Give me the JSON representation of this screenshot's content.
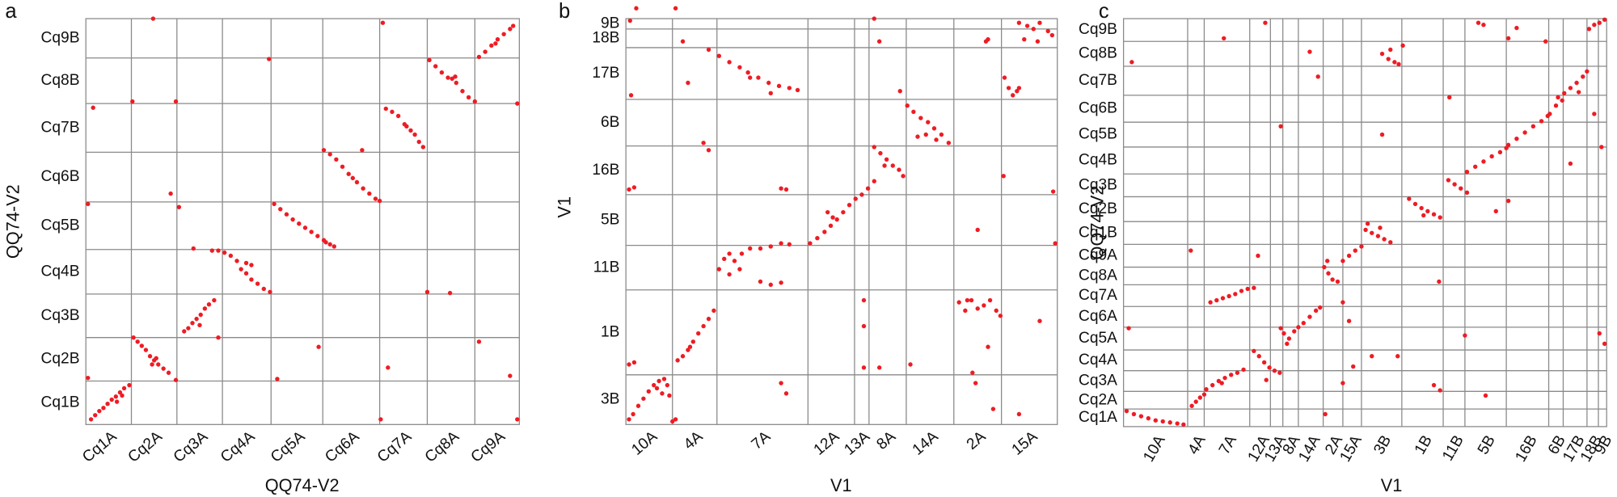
{
  "chart_data": [
    {
      "type": "scatter",
      "panel": "a",
      "xlabel": "QQ74-V2",
      "ylabel": "QQ74-V2",
      "color": "#ee1c24",
      "x_categories": [
        "Cq1A",
        "Cq2A",
        "Cq3A",
        "Cq4A",
        "Cq5A",
        "Cq6A",
        "Cq7A",
        "Cq8A",
        "Cq9A"
      ],
      "y_categories": [
        "Cq1B",
        "Cq2B",
        "Cq3B",
        "Cq4B",
        "Cq5B",
        "Cq6B",
        "Cq7B",
        "Cq8B",
        "Cq9B"
      ],
      "xlim": [
        0,
        419
      ],
      "ylim": [
        0,
        392
      ],
      "xbreaks": [
        44,
        88,
        132,
        179,
        229,
        284,
        330,
        376
      ],
      "ybreaks": [
        42,
        84,
        126,
        169,
        215,
        263,
        310,
        354
      ],
      "x": [
        5,
        9,
        13,
        17,
        21,
        25,
        29,
        33,
        37,
        42,
        30,
        35,
        46,
        50,
        54,
        58,
        62,
        66,
        70,
        75,
        80,
        64,
        68,
        95,
        99,
        103,
        107,
        111,
        115,
        119,
        124,
        128,
        110,
        122,
        128,
        134,
        140,
        146,
        150,
        155,
        160,
        166,
        172,
        178,
        155,
        160,
        182,
        188,
        194,
        200,
        206,
        212,
        218,
        224,
        230,
        236,
        240,
        232,
        230,
        236,
        242,
        248,
        254,
        258,
        262,
        268,
        274,
        280,
        284,
        290,
        296,
        302,
        308,
        314,
        318,
        322,
        326,
        310,
        332,
        338,
        344,
        350,
        354,
        358,
        364,
        370,
        376,
        357,
        380,
        386,
        392,
        398,
        404,
        410,
        413,
        396,
        2,
        7,
        65,
        177,
        287,
        330,
        417,
        87,
        45,
        82,
        104,
        2,
        87,
        185,
        285,
        417,
        225,
        292,
        380,
        410,
        352,
        267,
        90
      ],
      "y": [
        5,
        9,
        13,
        16,
        20,
        24,
        27,
        31,
        35,
        38,
        22,
        28,
        84,
        80,
        76,
        72,
        66,
        62,
        58,
        54,
        50,
        58,
        64,
        90,
        93,
        98,
        102,
        106,
        112,
        116,
        120,
        84,
        96,
        168,
        168,
        166,
        163,
        158,
        150,
        146,
        140,
        136,
        131,
        128,
        156,
        154,
        213,
        208,
        203,
        198,
        194,
        190,
        186,
        182,
        178,
        174,
        172,
        176,
        265,
        261,
        256,
        249,
        242,
        238,
        234,
        228,
        223,
        218,
        216,
        305,
        302,
        298,
        290,
        284,
        280,
        273,
        268,
        288,
        352,
        346,
        340,
        335,
        334,
        330,
        322,
        316,
        312,
        336,
        355,
        360,
        366,
        372,
        377,
        382,
        385,
        368,
        213,
        306,
        392,
        353,
        388,
        128,
        310,
        312,
        312,
        223,
        170,
        45,
        43,
        44,
        5,
        5,
        75,
        55,
        80,
        47,
        127,
        265,
        210
      ]
    },
    {
      "type": "scatter",
      "panel": "b",
      "xlabel": "V1",
      "ylabel": "V1",
      "color": "#ee1c24",
      "x_categories": [
        "10A",
        "4A",
        "7A",
        "12A",
        "13A",
        "8A",
        "14A",
        "2A",
        "15A"
      ],
      "y_categories": [
        "3B",
        "1B",
        "11B",
        "5B",
        "16B",
        "6B",
        "17B",
        "18B",
        "9B"
      ],
      "xlim": [
        0,
        417
      ],
      "ylim": [
        0,
        392
      ],
      "xbreaks": [
        45,
        88,
        176,
        221,
        235,
        271,
        317,
        363
      ],
      "ybreaks": [
        48,
        130,
        173,
        222,
        269,
        314,
        364,
        382
      ],
      "x": [
        3,
        7,
        12,
        17,
        22,
        27,
        32,
        37,
        40,
        35,
        30,
        42,
        3,
        8,
        3,
        8,
        5,
        4,
        45,
        48,
        50,
        55,
        60,
        65,
        70,
        75,
        80,
        85,
        62,
        90,
        95,
        100,
        105,
        112,
        120,
        130,
        140,
        150,
        158,
        100,
        110,
        130,
        140,
        150,
        80,
        90,
        100,
        110,
        118,
        128,
        138,
        148,
        158,
        166,
        140,
        120,
        178,
        185,
        192,
        198,
        204,
        210,
        216,
        222,
        228,
        234,
        195,
        200,
        240,
        246,
        252,
        258,
        264,
        268,
        250,
        240,
        272,
        278,
        285,
        292,
        298,
        305,
        312,
        300,
        290,
        282,
        366,
        370,
        374,
        378,
        380,
        380,
        388,
        394,
        400,
        408,
        412,
        385,
        398,
        322,
        328,
        334,
        340,
        346,
        352,
        358,
        362,
        330,
        150,
        155,
        230,
        230,
        245,
        275,
        230,
        365,
        415,
        400,
        413,
        335,
        338,
        355,
        380,
        350,
        348,
        350,
        240,
        55,
        48,
        10,
        150,
        155,
        265,
        340,
        60,
        245,
        75,
        80
      ],
      "y": [
        5,
        10,
        18,
        25,
        32,
        38,
        42,
        44,
        38,
        30,
        35,
        28,
        58,
        60,
        227,
        229,
        318,
        390,
        3,
        5,
        62,
        66,
        72,
        80,
        88,
        95,
        102,
        110,
        75,
        150,
        160,
        165,
        158,
        165,
        170,
        170,
        172,
        175,
        174,
        145,
        150,
        138,
        135,
        137,
        362,
        356,
        350,
        345,
        340,
        335,
        330,
        327,
        325,
        323,
        320,
        335,
        175,
        180,
        186,
        192,
        198,
        205,
        212,
        218,
        222,
        228,
        205,
        200,
        268,
        262,
        256,
        250,
        246,
        240,
        250,
        235,
        308,
        302,
        296,
        292,
        286,
        280,
        272,
        275,
        280,
        278,
        335,
        325,
        318,
        322,
        325,
        388,
        385,
        382,
        388,
        380,
        376,
        372,
        370,
        118,
        110,
        120,
        112,
        115,
        120,
        110,
        105,
        120,
        228,
        227,
        95,
        120,
        55,
        58,
        55,
        240,
        175,
        100,
        225,
        50,
        40,
        15,
        10,
        75,
        370,
        372,
        392,
        370,
        402,
        402,
        40,
        30,
        322,
        188,
        330,
        370,
        272,
        265
      ]
    },
    {
      "type": "scatter",
      "panel": "c",
      "xlabel": "V1",
      "ylabel": "QQ74-V2",
      "color": "#ee1c24",
      "x_categories": [
        "10A",
        "4A",
        "7A",
        "12A",
        "13A",
        "8A",
        "14A",
        "2A",
        "15A",
        "3B",
        "1B",
        "11B",
        "5B",
        "16B",
        "6B",
        "17B",
        "18B",
        "9B"
      ],
      "y_categories": [
        "Cq1A",
        "Cq2A",
        "Cq3A",
        "Cq4A",
        "Cq5A",
        "Cq6A",
        "Cq7A",
        "Cq8A",
        "Cq9A",
        "Cq1B",
        "Cq2B",
        "Cq3B",
        "Cq4B",
        "Cq5B",
        "Cq6B",
        "Cq7B",
        "Cq8B",
        "Cq9B"
      ],
      "xlim": [
        0,
        467
      ],
      "ylim": [
        0,
        394
      ],
      "xbreaks": [
        62,
        78,
        122,
        142,
        154,
        169,
        193,
        212,
        230,
        269,
        309,
        330,
        370,
        411,
        425,
        448,
        459
      ],
      "ybreaks": [
        17,
        34,
        54,
        74,
        96,
        116,
        137,
        154,
        176,
        198,
        222,
        244,
        270,
        294,
        320,
        348,
        372
      ],
      "x": [
        3,
        10,
        17,
        24,
        31,
        38,
        45,
        52,
        58,
        66,
        70,
        74,
        78,
        80,
        86,
        92,
        98,
        104,
        110,
        116,
        95,
        84,
        90,
        96,
        102,
        108,
        114,
        120,
        126,
        126,
        131,
        136,
        141,
        146,
        151,
        155,
        160,
        165,
        158,
        169,
        174,
        180,
        186,
        190,
        194,
        198,
        202,
        207,
        212,
        218,
        224,
        230,
        234,
        240,
        246,
        252,
        258,
        236,
        248,
        276,
        282,
        288,
        294,
        300,
        306,
        290,
        314,
        320,
        326,
        332,
        332,
        340,
        348,
        356,
        364,
        370,
        372,
        380,
        388,
        396,
        404,
        410,
        412,
        418,
        424,
        420,
        426,
        432,
        438,
        444,
        448,
        250,
        256,
        262,
        270,
        266,
        258,
        455,
        460,
        465,
        450,
        8,
        97,
        137,
        180,
        188,
        250,
        348,
        380,
        408,
        372,
        440,
        343,
        152,
        152,
        65,
        130,
        197,
        212,
        218,
        240,
        265,
        330,
        350,
        300,
        306,
        305,
        315,
        372,
        360,
        432,
        455,
        460,
        465,
        462,
        5,
        138,
        222,
        212,
        195
      ],
      "y": [
        15,
        12,
        10,
        8,
        6,
        5,
        4,
        3,
        2,
        20,
        24,
        28,
        31,
        36,
        40,
        44,
        47,
        50,
        52,
        55,
        42,
        120,
        122,
        124,
        126,
        128,
        131,
        133,
        134,
        73,
        68,
        62,
        57,
        54,
        52,
        90,
        85,
        92,
        80,
        96,
        100,
        106,
        112,
        115,
        154,
        148,
        142,
        140,
        160,
        165,
        170,
        174,
        190,
        187,
        184,
        181,
        178,
        196,
        192,
        220,
        215,
        211,
        208,
        205,
        202,
        204,
        238,
        234,
        230,
        226,
        246,
        251,
        256,
        261,
        265,
        269,
        272,
        278,
        284,
        290,
        295,
        300,
        302,
        310,
        315,
        318,
        322,
        327,
        332,
        338,
        343,
        360,
        355,
        352,
        368,
        350,
        364,
        388,
        390,
        393,
        384,
        352,
        375,
        390,
        362,
        338,
        282,
        388,
        385,
        372,
        375,
        323,
        390,
        290,
        95,
        170,
        165,
        160,
        120,
        102,
        68,
        68,
        88,
        30,
        40,
        35,
        140,
        318,
        218,
        208,
        254,
        302,
        90,
        80,
        270,
        95,
        45,
        58,
        42,
        12
      ]
    }
  ]
}
